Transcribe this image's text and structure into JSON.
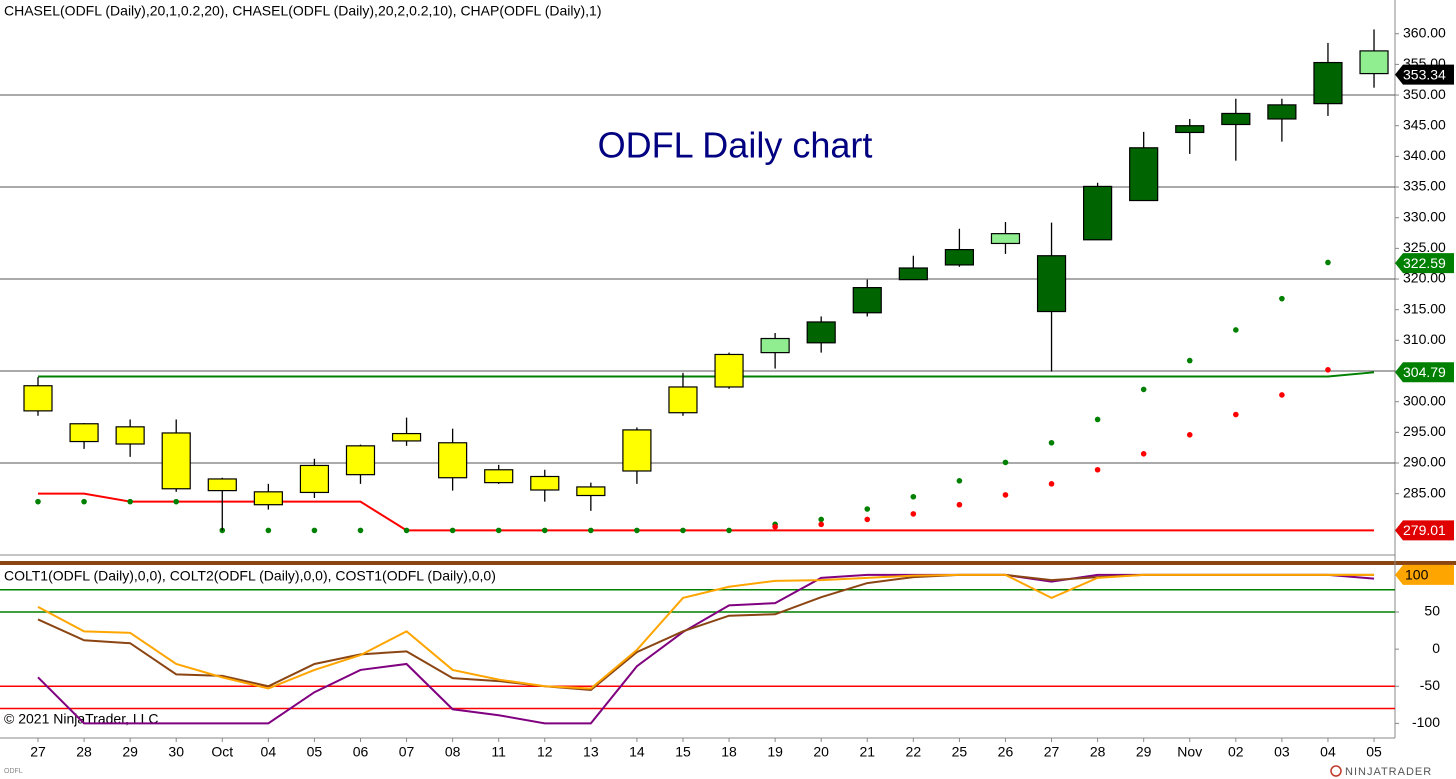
{
  "chart_data": {
    "type": "candlestick",
    "title": "ODFL Daily chart",
    "price_legend": "CHASEL(ODFL (Daily),20,1,0.2,20), CHASEL(ODFL (Daily),20,2,0.2,10), CHAP(ODFL (Daily),1)",
    "oscillator_legend": "COLT1(ODFL (Daily),0,0), COLT2(ODFL (Daily),0,0), COST1(ODFL (Daily),0,0)",
    "copyright": "© 2021 NinjaTrader, LLC",
    "symbol": "ODFL",
    "brand": "NINJATRADER",
    "categories": [
      "27",
      "28",
      "29",
      "30",
      "Oct",
      "04",
      "05",
      "06",
      "07",
      "08",
      "11",
      "12",
      "13",
      "14",
      "15",
      "18",
      "19",
      "20",
      "21",
      "22",
      "25",
      "26",
      "27",
      "28",
      "29",
      "Nov",
      "02",
      "03",
      "04",
      "05"
    ],
    "open": [
      298.5,
      296.4,
      295.9,
      294.9,
      287.4,
      283.2,
      285.2,
      288.1,
      293.6,
      293.3,
      288.9,
      287.8,
      286.1,
      288.7,
      298.2,
      302.4,
      308,
      309.6,
      314.5,
      319.9,
      322.3,
      325.8,
      323.8,
      326.4,
      332.8,
      343.9,
      345.2,
      346.1,
      348.6,
      353.5
    ],
    "high": [
      304,
      296.5,
      297.1,
      297.1,
      287.6,
      286.6,
      290.7,
      293,
      297.4,
      295.6,
      289.7,
      288.9,
      286.8,
      295.8,
      304.7,
      308,
      311.2,
      313.9,
      319.9,
      323.8,
      328.2,
      329.3,
      329.2,
      335.7,
      344,
      346.1,
      349.4,
      349.4,
      358.5,
      360.7
    ],
    "low": [
      297.7,
      292.3,
      291,
      285.3,
      279,
      282.4,
      284.3,
      286.6,
      292.8,
      285.5,
      286.6,
      283.7,
      282.2,
      286.6,
      297.7,
      302.1,
      305.4,
      308,
      313.9,
      319.9,
      322,
      324.1,
      304.9,
      326.4,
      332.8,
      340.4,
      339.3,
      342.4,
      346.6,
      351.2
    ],
    "close": [
      302.6,
      293.5,
      293.1,
      285.8,
      285.5,
      285.3,
      289.6,
      292.8,
      294.8,
      287.6,
      286.8,
      285.6,
      284.7,
      295.4,
      302.4,
      307.7,
      310.3,
      313,
      318.6,
      321.8,
      324.8,
      327.4,
      314.7,
      335.1,
      341.4,
      345,
      347,
      348.4,
      355.3,
      357.2
    ],
    "candle_colors": [
      "#ffff00",
      "#ffff00",
      "#ffff00",
      "#ffff00",
      "#ffff00",
      "#ffff00",
      "#ffff00",
      "#ffff00",
      "#ffff00",
      "#ffff00",
      "#ffff00",
      "#ffff00",
      "#ffff00",
      "#ffff00",
      "#ffff00",
      "#ffff00",
      "#90ee90",
      "#006400",
      "#006400",
      "#006400",
      "#006400",
      "#90ee90",
      "#006400",
      "#006400",
      "#006400",
      "#006400",
      "#006400",
      "#006400",
      "#006400",
      "#90ee90"
    ],
    "price_lines": [
      {
        "color": "#008000",
        "values": [
          304.1,
          304.1,
          304.1,
          304.1,
          304.1,
          304.1,
          304.1,
          304.1,
          304.1,
          304.1,
          304.1,
          304.1,
          304.1,
          304.1,
          304.1,
          304.1,
          304.1,
          304.1,
          304.1,
          304.1,
          304.1,
          304.1,
          304.1,
          304.1,
          304.1,
          304.1,
          304.1,
          304.1,
          304.1,
          304.79
        ]
      },
      {
        "color": "#ff0000",
        "values": [
          285,
          285,
          283.7,
          283.7,
          283.7,
          283.7,
          283.7,
          283.7,
          279.01,
          279.01,
          279.01,
          279.01,
          279.01,
          279.01,
          279.01,
          279.01,
          279.01,
          279.01,
          279.01,
          279.01,
          279.01,
          279.01,
          279.01,
          279.01,
          279.01,
          279.01,
          279.01,
          279.01,
          279.01,
          279.01
        ]
      }
    ],
    "dots": [
      {
        "color": "#008000",
        "values": [
          283.7,
          283.7,
          283.7,
          283.7,
          279.01,
          279.01,
          279.01,
          279.01,
          279.01,
          279.01,
          279.01,
          279.01,
          279.01,
          279.01,
          279.01,
          279.01,
          280,
          280.8,
          282.5,
          284.5,
          287.1,
          290.1,
          293.3,
          297.1,
          302,
          306.7,
          311.7,
          316.8,
          322.7,
          null
        ]
      },
      {
        "color": "#ff0000",
        "values": [
          null,
          null,
          null,
          null,
          null,
          null,
          null,
          null,
          null,
          null,
          null,
          null,
          null,
          null,
          null,
          null,
          279.6,
          280,
          280.8,
          281.7,
          283.2,
          284.8,
          286.6,
          288.9,
          291.5,
          294.6,
          297.9,
          301.1,
          305.2,
          null
        ]
      }
    ],
    "levels": [
      350,
      335,
      320,
      305,
      290
    ],
    "ylim": [
      275,
      365.5
    ],
    "yticks": [
      {
        "value": 285,
        "label": "285.00"
      },
      {
        "value": 290,
        "label": "290.00"
      },
      {
        "value": 295,
        "label": "295.00"
      },
      {
        "value": 300,
        "label": "300.00"
      },
      {
        "value": 305,
        "label": "305.00"
      },
      {
        "value": 310,
        "label": "310.00"
      },
      {
        "value": 315,
        "label": "315.00"
      },
      {
        "value": 320,
        "label": "320.00"
      },
      {
        "value": 325,
        "label": "325.00"
      },
      {
        "value": 330,
        "label": "330.00"
      },
      {
        "value": 335,
        "label": "335.00"
      },
      {
        "value": 340,
        "label": "340.00"
      },
      {
        "value": 345,
        "label": "345.00"
      },
      {
        "value": 350,
        "label": "350.00"
      },
      {
        "value": 355,
        "label": "355.00"
      },
      {
        "value": 360,
        "label": "360.00"
      }
    ],
    "price_flags": [
      {
        "value": 353.34,
        "color": "#000000"
      },
      {
        "value": 322.59,
        "color": "#008000"
      },
      {
        "value": 304.79,
        "color": "#008000"
      },
      {
        "value": 279.01,
        "color": "#e00000"
      }
    ],
    "y2lim": [
      -117,
      112
    ],
    "y2ticks": [
      100,
      50,
      0,
      -50,
      -100
    ],
    "osc_levels": [
      {
        "value": 80,
        "color": "#008000"
      },
      {
        "value": 50,
        "color": "#008000"
      },
      {
        "value": -50,
        "color": "#ff0000"
      },
      {
        "value": -80,
        "color": "#ff0000"
      }
    ],
    "osc_flag": {
      "value": 100,
      "color": "#ffa500"
    },
    "series": [
      {
        "color": "#800080",
        "axis": "y2",
        "values": [
          -38,
          -100,
          -100,
          -100,
          -100,
          -100,
          -58,
          -28,
          -20,
          -81,
          -89,
          -100,
          -100,
          -23,
          23,
          59,
          62,
          96,
          100,
          100,
          100,
          100,
          91,
          100,
          100,
          100,
          100,
          100,
          100,
          95
        ]
      },
      {
        "color": "#8b4513",
        "axis": "y2",
        "values": [
          40,
          12,
          8,
          -34,
          -36,
          -50,
          -20,
          -7,
          -3,
          -39,
          -43,
          -50,
          -55,
          -4,
          24,
          45,
          47,
          70,
          89,
          97,
          100,
          100,
          93,
          97,
          100,
          100,
          100,
          100,
          100,
          100
        ]
      },
      {
        "color": "#ffa500",
        "axis": "y2",
        "values": [
          57,
          24,
          22,
          -20,
          -38,
          -53,
          -28,
          -8,
          24,
          -28,
          -41,
          -50,
          -53,
          -1,
          69,
          84,
          92,
          93,
          96,
          99,
          100,
          100,
          69,
          96,
          100,
          100,
          100,
          100,
          100,
          100
        ]
      }
    ]
  }
}
